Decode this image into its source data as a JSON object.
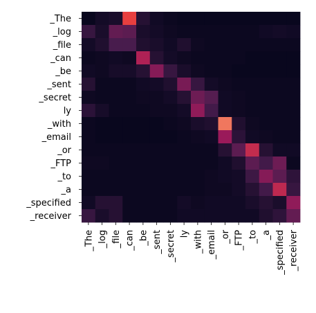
{
  "chart_data": {
    "type": "heatmap",
    "title": "",
    "xlabel": "",
    "ylabel": "",
    "rows": [
      "_The",
      "_log",
      "_file",
      "_can",
      "_be",
      "_sent",
      "_secret",
      "ly",
      "_with",
      "_email",
      "_or",
      "_FTP",
      "_to",
      "_a",
      "_specified",
      "_receiver"
    ],
    "columns": [
      "_The",
      "_log",
      "_file",
      "_can",
      "_be",
      "_sent",
      "_secret",
      "ly",
      "_with",
      "_email",
      "_or",
      "_FTP",
      "_to",
      "_a",
      "_specified",
      "_receiver"
    ],
    "value_range": [
      0,
      1
    ],
    "colormap": [
      "#03051a",
      "#4b1d4f",
      "#a11a5b",
      "#e83f3f",
      "#f69c73"
    ],
    "values": [
      [
        0.02,
        0.06,
        0.08,
        0.75,
        0.12,
        0.05,
        0.03,
        0.02,
        0.02,
        0.02,
        0.02,
        0.02,
        0.02,
        0.02,
        0.02,
        0.02
      ],
      [
        0.18,
        0.08,
        0.32,
        0.3,
        0.08,
        0.06,
        0.04,
        0.03,
        0.03,
        0.03,
        0.03,
        0.03,
        0.03,
        0.05,
        0.06,
        0.05
      ],
      [
        0.06,
        0.1,
        0.24,
        0.24,
        0.1,
        0.08,
        0.05,
        0.1,
        0.04,
        0.03,
        0.03,
        0.03,
        0.03,
        0.03,
        0.03,
        0.03
      ],
      [
        0.03,
        0.04,
        0.05,
        0.04,
        0.55,
        0.12,
        0.06,
        0.04,
        0.03,
        0.03,
        0.03,
        0.03,
        0.02,
        0.02,
        0.02,
        0.02
      ],
      [
        0.05,
        0.04,
        0.07,
        0.07,
        0.12,
        0.42,
        0.18,
        0.08,
        0.04,
        0.03,
        0.03,
        0.02,
        0.02,
        0.02,
        0.02,
        0.02
      ],
      [
        0.12,
        0.03,
        0.03,
        0.03,
        0.05,
        0.06,
        0.1,
        0.38,
        0.18,
        0.06,
        0.04,
        0.03,
        0.03,
        0.03,
        0.03,
        0.03
      ],
      [
        0.04,
        0.03,
        0.03,
        0.03,
        0.04,
        0.04,
        0.06,
        0.12,
        0.35,
        0.28,
        0.05,
        0.04,
        0.03,
        0.03,
        0.03,
        0.03
      ],
      [
        0.14,
        0.07,
        0.03,
        0.03,
        0.03,
        0.04,
        0.04,
        0.06,
        0.45,
        0.22,
        0.05,
        0.04,
        0.03,
        0.03,
        0.03,
        0.03
      ],
      [
        0.03,
        0.02,
        0.02,
        0.02,
        0.02,
        0.02,
        0.03,
        0.04,
        0.08,
        0.1,
        0.9,
        0.1,
        0.04,
        0.03,
        0.03,
        0.03
      ],
      [
        0.03,
        0.02,
        0.02,
        0.02,
        0.02,
        0.02,
        0.02,
        0.03,
        0.04,
        0.05,
        0.48,
        0.14,
        0.05,
        0.04,
        0.03,
        0.03
      ],
      [
        0.03,
        0.03,
        0.03,
        0.03,
        0.03,
        0.03,
        0.03,
        0.03,
        0.03,
        0.03,
        0.12,
        0.3,
        0.62,
        0.12,
        0.05,
        0.05
      ],
      [
        0.04,
        0.04,
        0.03,
        0.03,
        0.03,
        0.03,
        0.03,
        0.03,
        0.03,
        0.03,
        0.05,
        0.1,
        0.3,
        0.22,
        0.35,
        0.03
      ],
      [
        0.03,
        0.03,
        0.03,
        0.03,
        0.03,
        0.03,
        0.03,
        0.03,
        0.03,
        0.04,
        0.05,
        0.06,
        0.2,
        0.42,
        0.3,
        0.15
      ],
      [
        0.03,
        0.03,
        0.03,
        0.03,
        0.03,
        0.03,
        0.03,
        0.03,
        0.03,
        0.04,
        0.04,
        0.06,
        0.12,
        0.22,
        0.6,
        0.18
      ],
      [
        0.05,
        0.12,
        0.12,
        0.03,
        0.03,
        0.03,
        0.03,
        0.06,
        0.04,
        0.05,
        0.05,
        0.05,
        0.08,
        0.12,
        0.08,
        0.45
      ],
      [
        0.18,
        0.08,
        0.12,
        0.03,
        0.03,
        0.03,
        0.03,
        0.05,
        0.05,
        0.05,
        0.05,
        0.05,
        0.05,
        0.1,
        0.15,
        0.32
      ]
    ]
  }
}
